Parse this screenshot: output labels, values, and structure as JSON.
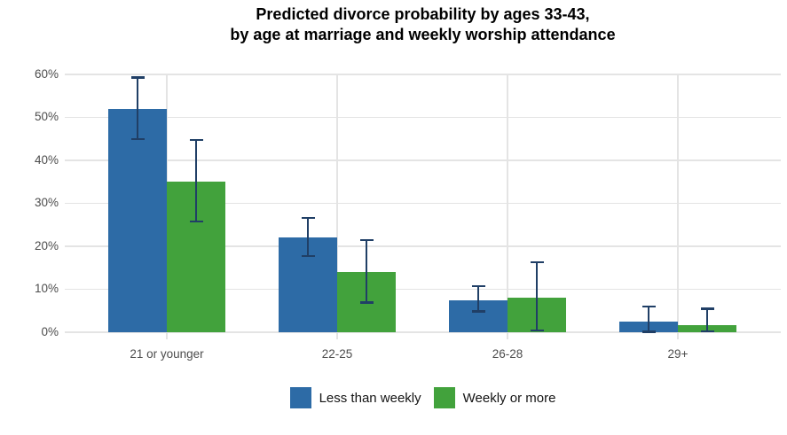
{
  "chart_data": {
    "type": "bar",
    "title_line1": "Predicted divorce probability by ages 33-43,",
    "title_line2": "by age at marriage and weekly worship attendance",
    "categories": [
      "21 or younger",
      "22-25",
      "26-28",
      "29+"
    ],
    "series": [
      {
        "name": "Less than weekly",
        "color": "#2d6ba6",
        "values": [
          52,
          22,
          7.5,
          2.4
        ],
        "ci_low": [
          44.9,
          17.7,
          4.8,
          0.1
        ],
        "ci_high": [
          59.3,
          26.6,
          10.7,
          6.0
        ]
      },
      {
        "name": "Weekly or more",
        "color": "#42a23c",
        "values": [
          35,
          14,
          8.1,
          1.7
        ],
        "ci_low": [
          25.8,
          6.9,
          0.4,
          0.2
        ],
        "ci_high": [
          44.7,
          21.4,
          16.3,
          5.5
        ]
      }
    ],
    "ylim": [
      0,
      60
    ],
    "y_ticks": [
      {
        "value": 0,
        "label": "0%"
      },
      {
        "value": 10,
        "label": "10%"
      },
      {
        "value": 20,
        "label": "20%"
      },
      {
        "value": 30,
        "label": "30%"
      },
      {
        "value": 40,
        "label": "40%"
      },
      {
        "value": 50,
        "label": "50%"
      },
      {
        "value": 60,
        "label": "60%"
      }
    ],
    "error_bar_color": "#203f66",
    "grid": true,
    "legend_position": "bottom"
  }
}
